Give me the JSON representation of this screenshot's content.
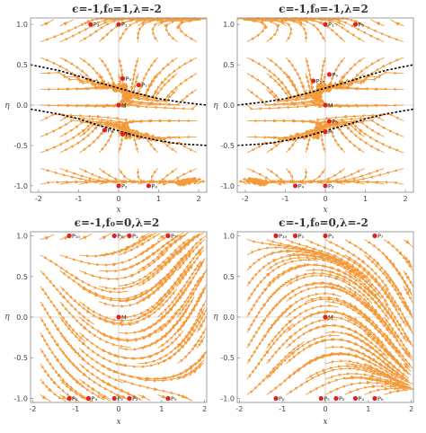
{
  "colors": {
    "stream": "#f39a3a",
    "point": "#e0201b",
    "separatrix": "#000000",
    "frame": "#888888"
  },
  "chart_data": [
    {
      "type": "streamplot",
      "title": "ϵ=-1,f₀=1,λ=-2",
      "xlabel": "x",
      "ylabel": "η",
      "xlim": [
        -2.2,
        2.2
      ],
      "ylim": [
        -1.08,
        1.08
      ],
      "xticks": [
        -2,
        -1,
        0,
        1,
        2
      ],
      "yticks": [
        -1.0,
        -0.5,
        0.0,
        0.5,
        1.0
      ],
      "params": {
        "eps": -1,
        "f0": 1,
        "lambda": -2
      },
      "points": [
        {
          "label": "P₁",
          "x": 0,
          "y": 1.0
        },
        {
          "label": "P₃",
          "x": -0.7,
          "y": 1.0
        },
        {
          "label": "P₅",
          "x": 0.1,
          "y": 0.33
        },
        {
          "label": "P₇",
          "x": 0.5,
          "y": 0.25
        },
        {
          "label": "M",
          "x": 0,
          "y": 0
        },
        {
          "label": "P₆",
          "x": -0.35,
          "y": -0.31
        },
        {
          "label": "P₈",
          "x": 0.1,
          "y": -0.36
        },
        {
          "label": "P₂",
          "x": 0,
          "y": -1.0
        },
        {
          "label": "P₄",
          "x": 0.75,
          "y": -1.0
        }
      ],
      "separatrices": [
        {
          "x": [
            -2.2,
            -1.5,
            -1.0,
            -0.5,
            0,
            0.5,
            1.0,
            1.5,
            2.2
          ],
          "y": [
            0.5,
            0.43,
            0.36,
            0.28,
            0.21,
            0.14,
            0.08,
            0.04,
            0.0
          ]
        },
        {
          "x": [
            -2.2,
            -1.5,
            -1.0,
            -0.5,
            0,
            0.5,
            1.0,
            1.5,
            2.2
          ],
          "y": [
            -0.05,
            -0.11,
            -0.17,
            -0.25,
            -0.32,
            -0.39,
            -0.44,
            -0.48,
            -0.5
          ]
        }
      ]
    },
    {
      "type": "streamplot",
      "title": "ϵ=-1,f₀=-1,λ=2",
      "xlabel": "x",
      "ylabel": "η",
      "xlim": [
        -2.2,
        2.2
      ],
      "ylim": [
        -1.08,
        1.08
      ],
      "xticks": [
        -2,
        -1,
        0,
        1,
        2
      ],
      "yticks": [
        -1.0,
        -0.5,
        0.0,
        0.5,
        1.0
      ],
      "params": {
        "eps": -1,
        "f0": -1,
        "lambda": 2
      },
      "points": [
        {
          "label": "P₁",
          "x": 0,
          "y": 1.0
        },
        {
          "label": "P₃",
          "x": 0.75,
          "y": 1.0
        },
        {
          "label": "P₉",
          "x": 0.1,
          "y": 0.38
        },
        {
          "label": "P₁₀",
          "x": -0.3,
          "y": 0.3
        },
        {
          "label": "M",
          "x": 0,
          "y": 0
        },
        {
          "label": "P₅",
          "x": 0.1,
          "y": -0.2
        },
        {
          "label": "P₇",
          "x": 0,
          "y": -0.33
        },
        {
          "label": "P₄",
          "x": -0.75,
          "y": -1.0
        },
        {
          "label": "P₂",
          "x": 0,
          "y": -1.0
        }
      ],
      "separatrices": [
        {
          "x": [
            -2.2,
            -1.5,
            -1.0,
            -0.5,
            0,
            0.5,
            1.0,
            1.5,
            2.2
          ],
          "y": [
            0.0,
            0.04,
            0.08,
            0.14,
            0.21,
            0.28,
            0.36,
            0.43,
            0.5
          ]
        },
        {
          "x": [
            -2.2,
            -1.5,
            -1.0,
            -0.5,
            0,
            0.5,
            1.0,
            1.5,
            2.2
          ],
          "y": [
            -0.5,
            -0.48,
            -0.44,
            -0.39,
            -0.32,
            -0.25,
            -0.17,
            -0.11,
            -0.05
          ]
        }
      ]
    },
    {
      "type": "streamplot",
      "title": "ϵ=-1,f₀=0,λ=2",
      "xlabel": "x",
      "ylabel": "η",
      "xlim": [
        -2.05,
        2.05
      ],
      "ylim": [
        -1.05,
        1.05
      ],
      "xticks": [
        -2,
        -1,
        0,
        1,
        2
      ],
      "yticks": [
        -1.0,
        -0.5,
        0.0,
        0.5,
        1.0
      ],
      "params": {
        "eps": -1,
        "f0": 0,
        "lambda": 2
      },
      "points": [
        {
          "label": "P₁₀",
          "x": -1.15,
          "y": 1.0
        },
        {
          "label": "P₃",
          "x": -0.1,
          "y": 1.0
        },
        {
          "label": "P₁",
          "x": 0.25,
          "y": 1.0
        },
        {
          "label": "P₇",
          "x": 1.15,
          "y": 1.0
        },
        {
          "label": "M",
          "x": 0,
          "y": 0
        },
        {
          "label": "P₈",
          "x": -1.15,
          "y": -1.0
        },
        {
          "label": "P₄",
          "x": -0.7,
          "y": -1.0
        },
        {
          "label": "P₅",
          "x": -0.1,
          "y": -1.0
        },
        {
          "label": "P₂",
          "x": 0.25,
          "y": -1.0
        },
        {
          "label": "P₉",
          "x": 1.15,
          "y": -1.0
        }
      ]
    },
    {
      "type": "streamplot",
      "title": "ϵ=-1,f₀=0,λ=-2",
      "xlabel": "x",
      "ylabel": "η",
      "xlim": [
        -2.05,
        2.05
      ],
      "ylim": [
        -1.05,
        1.05
      ],
      "xticks": [
        -2,
        -1,
        0,
        1,
        2
      ],
      "yticks": [
        -1.0,
        -0.5,
        0.0,
        0.5,
        1.0
      ],
      "params": {
        "eps": -1,
        "f0": 0,
        "lambda": -2
      },
      "points": [
        {
          "label": "P₁₀",
          "x": -1.15,
          "y": 1.0
        },
        {
          "label": "P₃",
          "x": -0.7,
          "y": 1.0
        },
        {
          "label": "P₁",
          "x": 0.0,
          "y": 1.0
        },
        {
          "label": "P₇",
          "x": 1.15,
          "y": 1.0
        },
        {
          "label": "M",
          "x": 0,
          "y": 0
        },
        {
          "label": "P₉",
          "x": -1.15,
          "y": -1.0
        },
        {
          "label": "P₅",
          "x": -0.1,
          "y": -1.0
        },
        {
          "label": "P₂",
          "x": 0.25,
          "y": -1.0
        },
        {
          "label": "P₄",
          "x": 0.7,
          "y": -1.0
        },
        {
          "label": "P₈",
          "x": 1.15,
          "y": -1.0
        }
      ]
    }
  ]
}
